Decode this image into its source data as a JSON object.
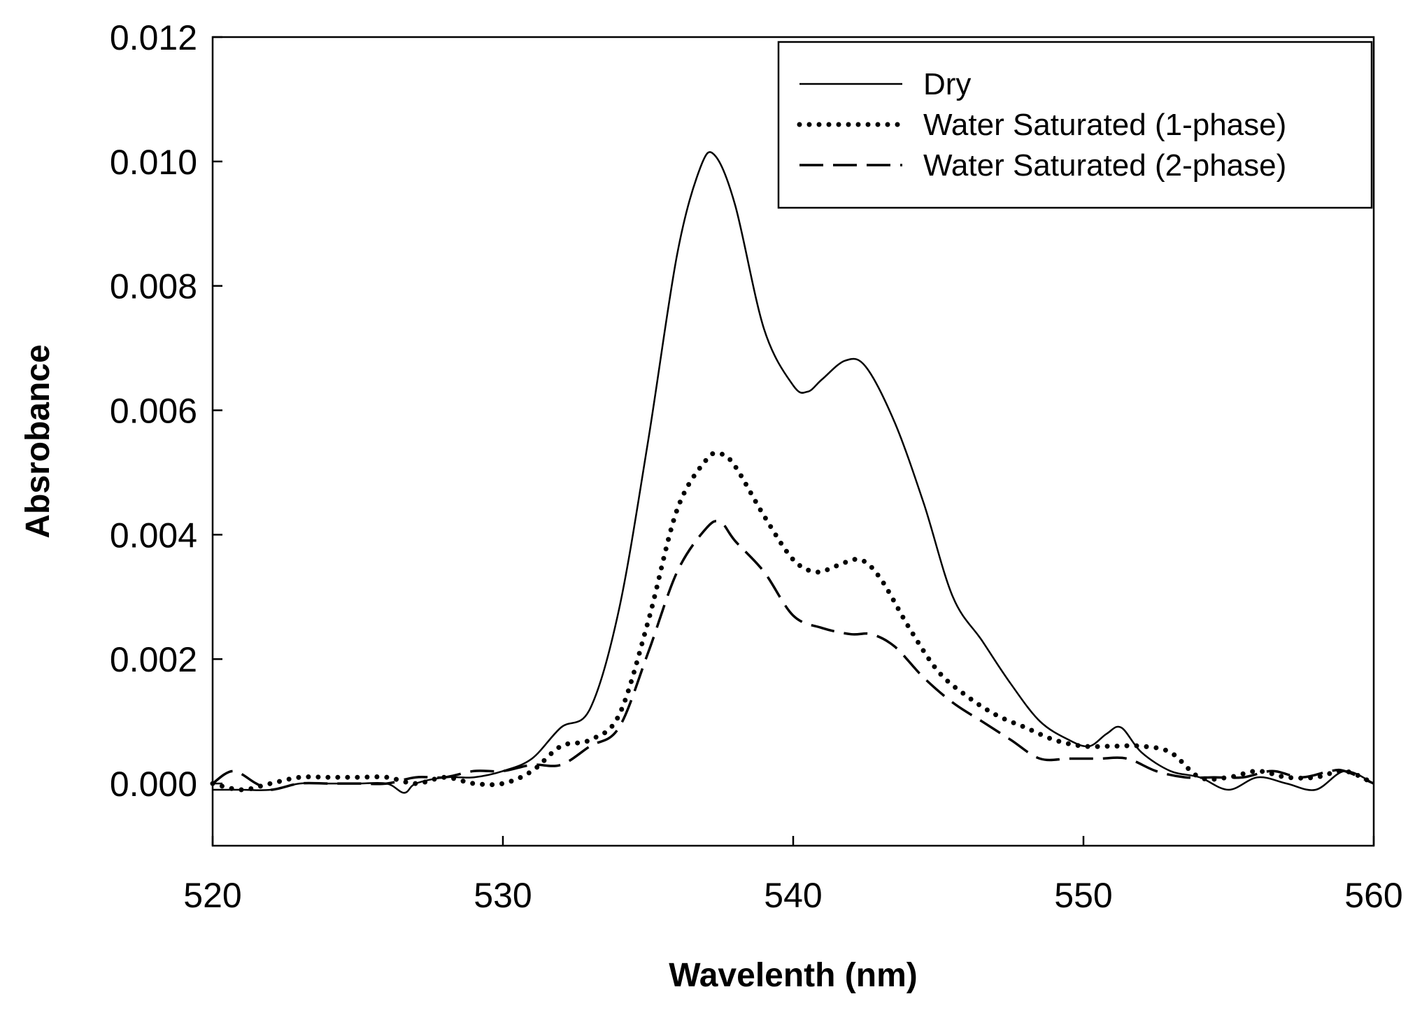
{
  "chart_data": {
    "type": "line",
    "title": "",
    "xlabel": "Wavelenth (nm)",
    "ylabel": "Absrobance",
    "xlim": [
      520,
      560
    ],
    "ylim": [
      -0.001,
      0.012
    ],
    "xticks": [
      520,
      530,
      540,
      550,
      560
    ],
    "xtick_labels": [
      "520",
      "530",
      "540",
      "550",
      "560"
    ],
    "yticks": [
      0.0,
      0.002,
      0.004,
      0.006,
      0.008,
      0.01,
      0.012
    ],
    "ytick_labels": [
      "0.000",
      "0.002",
      "0.004",
      "0.006",
      "0.008",
      "0.010",
      "0.012"
    ],
    "grid": false,
    "legend_position": "top-right",
    "series": [
      {
        "name": "Dry",
        "style": "solid",
        "x": [
          520,
          521,
          522,
          523,
          524,
          525,
          526,
          526.6,
          527,
          528,
          529,
          530,
          531,
          532,
          533,
          534,
          535,
          536,
          536.8,
          537.3,
          538,
          539,
          540,
          540.5,
          541,
          541.8,
          542.5,
          543.5,
          544.5,
          545.5,
          546.5,
          547.5,
          548.5,
          549.5,
          550.2,
          550.8,
          551.3,
          552,
          553,
          554,
          555,
          556,
          557,
          558,
          559,
          560
        ],
        "values": [
          -0.0001,
          -0.0001,
          -0.0001,
          0.0,
          0.0,
          0.0,
          0.0,
          -0.00015,
          0.0,
          0.0001,
          0.0001,
          0.0002,
          0.0004,
          0.0009,
          0.0012,
          0.0028,
          0.0055,
          0.0085,
          0.0099,
          0.0101,
          0.0093,
          0.0073,
          0.0064,
          0.0063,
          0.0065,
          0.0068,
          0.0067,
          0.0058,
          0.0045,
          0.003,
          0.0023,
          0.0016,
          0.001,
          0.0007,
          0.0006,
          0.0008,
          0.0009,
          0.0005,
          0.0002,
          0.0001,
          -0.0001,
          0.0001,
          0.0,
          -0.0001,
          0.0002,
          0.0
        ]
      },
      {
        "name": "Water Saturated (1-phase)",
        "style": "dotted",
        "x": [
          520,
          521,
          522,
          523,
          524,
          525,
          526,
          527,
          528,
          529,
          530,
          531,
          532,
          533,
          534,
          535,
          536,
          537,
          537.5,
          538,
          539,
          540,
          540.8,
          541.5,
          542.3,
          543,
          544,
          545,
          546,
          547,
          548,
          549,
          550,
          551,
          552,
          553,
          554,
          555,
          556,
          557,
          558,
          559,
          560
        ],
        "values": [
          0.0,
          -0.0001,
          0.0,
          0.0001,
          0.0001,
          0.0001,
          0.0001,
          0.0,
          0.0001,
          0.0,
          0.0,
          0.0002,
          0.0006,
          0.0007,
          0.0011,
          0.0026,
          0.0044,
          0.0052,
          0.0053,
          0.0051,
          0.0043,
          0.0036,
          0.0034,
          0.0035,
          0.0036,
          0.0033,
          0.0025,
          0.0018,
          0.0014,
          0.0011,
          0.0009,
          0.0007,
          0.0006,
          0.0006,
          0.0006,
          0.0005,
          0.0001,
          0.0001,
          0.0002,
          0.0001,
          0.0001,
          0.0002,
          0.0
        ]
      },
      {
        "name": "Water Saturated (2-phase)",
        "style": "dashed",
        "x": [
          520,
          520.7,
          521.5,
          522,
          523,
          524,
          525,
          526,
          527,
          528,
          529,
          530,
          531,
          532,
          533,
          534,
          535,
          536,
          537,
          537.5,
          538,
          539,
          540,
          541,
          542,
          542.7,
          543.5,
          544.5,
          545.5,
          546.5,
          547.5,
          548.5,
          549.5,
          550.5,
          551.5,
          552.5,
          553.5,
          554.5,
          555.5,
          556.5,
          557.5,
          558.5,
          559,
          560
        ],
        "values": [
          0.0,
          0.0002,
          0.0,
          -0.0001,
          0.0,
          0.0,
          0.0,
          0.0,
          0.0001,
          0.0001,
          0.0002,
          0.0002,
          0.0003,
          0.0003,
          0.0006,
          0.0009,
          0.0021,
          0.0034,
          0.0041,
          0.0042,
          0.0039,
          0.0034,
          0.0027,
          0.0025,
          0.0024,
          0.0024,
          0.0022,
          0.0017,
          0.0013,
          0.001,
          0.0007,
          0.0004,
          0.0004,
          0.0004,
          0.0004,
          0.0002,
          0.0001,
          0.0001,
          0.0001,
          0.0002,
          0.0001,
          0.0002,
          0.0002,
          0.0
        ]
      }
    ]
  }
}
